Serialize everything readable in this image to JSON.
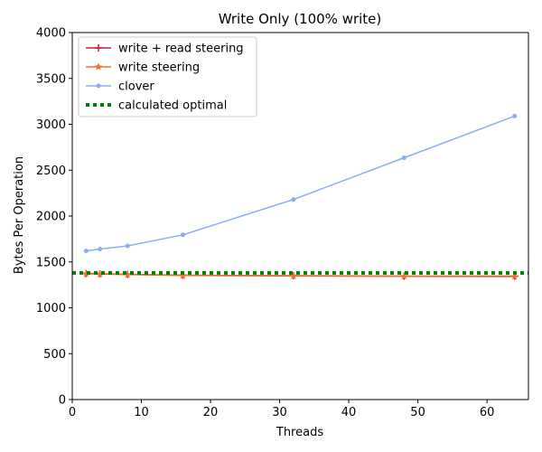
{
  "chart_data": {
    "type": "line",
    "title": "Write Only (100% write)",
    "xlabel": "Threads",
    "ylabel": "Bytes Per Operation",
    "xlim": [
      0,
      66
    ],
    "ylim": [
      0,
      4000
    ],
    "xticks": [
      0,
      10,
      20,
      30,
      40,
      50,
      60
    ],
    "yticks": [
      0,
      500,
      1000,
      1500,
      2000,
      2500,
      3000,
      3500,
      4000
    ],
    "grid": false,
    "legend_position": "top-left",
    "series": [
      {
        "name": "write + read steering",
        "color": "#c0223b",
        "marker": "plus",
        "style": "solid",
        "x": [
          2,
          4,
          8,
          16,
          32,
          48,
          64
        ],
        "y": [
          1375,
          1370,
          1365,
          1355,
          1350,
          1345,
          1345
        ]
      },
      {
        "name": "write steering",
        "color": "#f07030",
        "marker": "star",
        "style": "solid",
        "x": [
          2,
          4,
          8,
          16,
          32,
          48,
          64
        ],
        "y": [
          1370,
          1368,
          1362,
          1352,
          1348,
          1342,
          1340
        ]
      },
      {
        "name": "clover",
        "color": "#8aaff0",
        "marker": "dot",
        "style": "solid",
        "x": [
          2,
          4,
          8,
          16,
          32,
          48,
          64
        ],
        "y": [
          1620,
          1640,
          1675,
          1795,
          2180,
          2635,
          3090
        ]
      },
      {
        "name": "calculated optimal",
        "color": "#007f00",
        "marker": "none",
        "style": "dotted",
        "x": [
          0,
          66
        ],
        "y": [
          1380,
          1380
        ]
      }
    ]
  }
}
